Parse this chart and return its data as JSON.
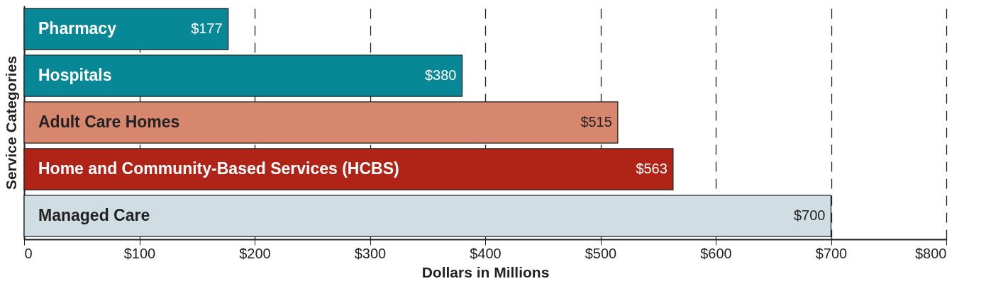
{
  "chart_data": {
    "type": "bar",
    "orientation": "horizontal",
    "xlabel": "Dollars in Millions",
    "ylabel": "Service Categories",
    "categories": [
      "Pharmacy",
      "Hospitals",
      "Adult Care Homes",
      "Home and Community-Based Services (HCBS)",
      "Managed Care"
    ],
    "values": [
      177,
      380,
      515,
      563,
      700
    ],
    "colors": [
      "#088896",
      "#088896",
      "#d6876d",
      "#b02418",
      "#d0dde2"
    ],
    "value_labels": [
      "$177",
      "$380",
      "$515",
      "$563",
      "$700"
    ],
    "xlim": [
      0,
      800
    ],
    "xticks": [
      0,
      {
        "value": 100,
        "label": "$100"
      },
      {
        "value": 200,
        "label": "$200"
      },
      {
        "value": 300,
        "label": "$300"
      },
      {
        "value": 400,
        "label": "$400"
      },
      {
        "value": 500,
        "label": "$500"
      },
      {
        "value": 600,
        "label": "$600"
      },
      {
        "value": 700,
        "label": "$700"
      },
      {
        "value": 800,
        "label": "$800"
      }
    ],
    "grid": "x"
  }
}
